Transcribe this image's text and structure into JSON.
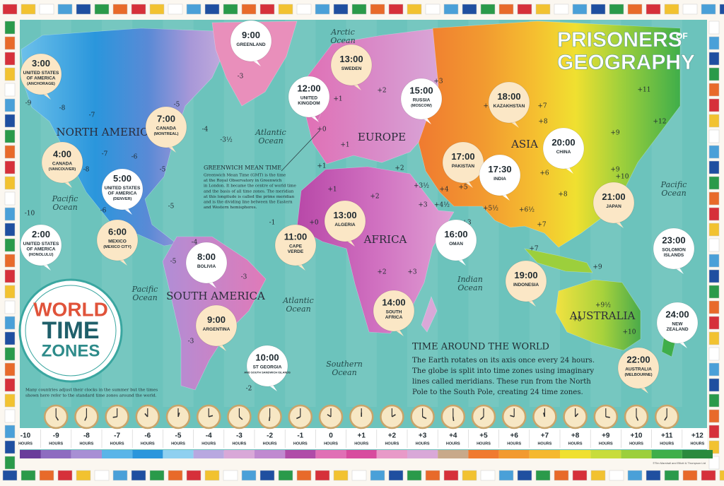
{
  "brand": {
    "line1": "PRISONERS",
    "of": "OF",
    "line2": "GEOGRAPHY"
  },
  "badge": [
    "WORLD",
    "TIME",
    "ZONES"
  ],
  "continents": [
    "NORTH AMERICA",
    "EUROPE",
    "ASIA",
    "AFRICA",
    "SOUTH AMERICA",
    "AUSTRALIA"
  ],
  "oceans": [
    [
      "Arctic",
      "Ocean"
    ],
    [
      "Atlantic",
      "Ocean"
    ],
    [
      "Pacific",
      "Ocean"
    ],
    [
      "Pacific",
      "Ocean"
    ],
    [
      "Atlantic",
      "Ocean"
    ],
    [
      "Indian",
      "Ocean"
    ],
    [
      "Pacific",
      "Ocean"
    ],
    [
      "Southern",
      "Ocean"
    ]
  ],
  "bubbles": [
    {
      "time": "3:00",
      "place": [
        "UNITED STATES",
        "OF AMERICA"
      ],
      "detail": "(ANCHORAGE)"
    },
    {
      "time": "9:00",
      "place": [
        "GREENLAND"
      ]
    },
    {
      "time": "12:00",
      "place": [
        "UNITED",
        "KINGDOM"
      ]
    },
    {
      "time": "13:00",
      "place": [
        "SWEDEN"
      ]
    },
    {
      "time": "15:00",
      "place": [
        "RUSSIA"
      ],
      "detail": "(MOSCOW)"
    },
    {
      "time": "18:00",
      "place": [
        "KAZAKHSTAN"
      ]
    },
    {
      "time": "7:00",
      "place": [
        "CANADA"
      ],
      "detail": "(MONTREAL)"
    },
    {
      "time": "4:00",
      "place": [
        "CANADA"
      ],
      "detail": "(VANCOUVER)"
    },
    {
      "time": "5:00",
      "place": [
        "UNITED STATES",
        "OF AMERICA"
      ],
      "detail": "(DENVER)"
    },
    {
      "time": "20:00",
      "place": [
        "CHINA"
      ]
    },
    {
      "time": "17:00",
      "place": [
        "PAKISTAN"
      ]
    },
    {
      "time": "17:30",
      "place": [
        "INDIA"
      ]
    },
    {
      "time": "21:00",
      "place": [
        "JAPAN"
      ]
    },
    {
      "time": "2:00",
      "place": [
        "UNITED STATES",
        "OF AMERICA"
      ],
      "detail": "(HONOLULU)"
    },
    {
      "time": "6:00",
      "place": [
        "MEXICO"
      ],
      "detail": "(MEXICO CITY)"
    },
    {
      "time": "11:00",
      "place": [
        "CAPE",
        "VERDE"
      ]
    },
    {
      "time": "13:00",
      "place": [
        "ALGERIA"
      ]
    },
    {
      "time": "16:00",
      "place": [
        "OMAN"
      ]
    },
    {
      "time": "8:00",
      "place": [
        "BOLIVIA"
      ]
    },
    {
      "time": "23:00",
      "place": [
        "SOLOMON",
        "ISLANDS"
      ]
    },
    {
      "time": "19:00",
      "place": [
        "INDONESIA"
      ]
    },
    {
      "time": "9:00",
      "place": [
        "ARGENTINA"
      ]
    },
    {
      "time": "14:00",
      "place": [
        "SOUTH",
        "AFRICA"
      ]
    },
    {
      "time": "24:00",
      "place": [
        "NEW",
        "ZEALAND"
      ]
    },
    {
      "time": "10:00",
      "place": [
        "ST GEORGIA"
      ],
      "detail": "AND SOUTH SANDWICH ISLANDS"
    },
    {
      "time": "22:00",
      "place": [
        "AUSTRALIA"
      ],
      "detail": "(MELBOURNE)"
    }
  ],
  "offsets": [
    "-9",
    "-8",
    "-7",
    "-6",
    "-5",
    "-4",
    "-3½",
    "-3",
    "-7",
    "-8",
    "-6",
    "-5",
    "-5",
    "-10",
    "-5",
    "-4",
    "-3",
    "-3",
    "-2",
    "-1",
    "+0",
    "+0",
    "+1",
    "+2",
    "+3",
    "+1",
    "+2",
    "+1",
    "+2",
    "+3",
    "+2",
    "+3",
    "+3½",
    "+4",
    "+5",
    "+4½",
    "+5½",
    "+6½",
    "+7",
    "+6",
    "+7",
    "+8",
    "+9",
    "+10",
    "+11",
    "+12",
    "+9",
    "+8",
    "+9½",
    "+10",
    "+8",
    "+5",
    "+3",
    "+1",
    "+7",
    "+9"
  ],
  "greenwich": {
    "title": "GREENWICH MEAN TIME",
    "lines": [
      "Greenwich Mean Time (GMT) is the time",
      "at the Royal Observatory in Greenwich",
      "in London. It became the centre of world time",
      "and the basis of all time zones. The meridian",
      "at this longitude is called the prime meridian",
      "and is the dividing line between the Eastern",
      "and Western hemispheres."
    ]
  },
  "info": {
    "title": "TIME AROUND THE WORLD",
    "lines": [
      "The Earth rotates on its axis once every 24 hours.",
      "The globe is split into time zones using imaginary",
      "lines called meridians. These run from the North",
      "Pole to the South Pole, creating 24 time zones."
    ]
  },
  "note": [
    "Many countries adjust their clocks in the summer but the times",
    "shown here refer to the standard time zones around the world."
  ],
  "clock_row": {
    "hours": [
      "-10",
      "-9",
      "-8",
      "-7",
      "-6",
      "-5",
      "-4",
      "-3",
      "-2",
      "-1",
      "0",
      "+1",
      "+2",
      "+3",
      "+4",
      "+5",
      "+6",
      "+7",
      "+8",
      "+9",
      "+10",
      "+11",
      "+12"
    ],
    "unit": "HOURS",
    "colors": [
      "#6a3d9a",
      "#8e6cc0",
      "#a88fd4",
      "#5ab5e8",
      "#2a96dc",
      "#8fd0f0",
      "#b8a8e0",
      "#d9a8d8",
      "#c08ad0",
      "#b04ca8",
      "#e070b5",
      "#d84c9e",
      "#e89ac8",
      "#d9a8d8",
      "#c8a98a",
      "#f07a30",
      "#f29a30",
      "#f5b830",
      "#f0e030",
      "#c8dc3c",
      "#9ccf3c",
      "#3fae4a",
      "#2a8a3e"
    ]
  },
  "copyright": "©Tim Marshall and Elliott & Thompson Ltd"
}
